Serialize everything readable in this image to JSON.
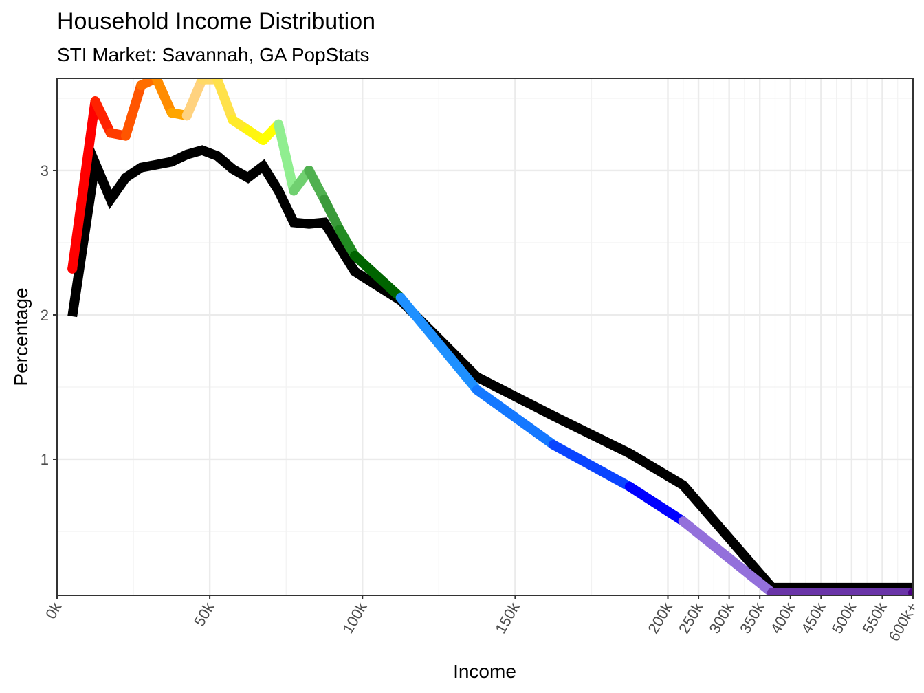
{
  "chart_data": {
    "type": "line",
    "title": "Household Income Distribution",
    "subtitle": "STI Market: Savannah, GA PopStats",
    "xlabel": "Income",
    "ylabel": "Percentage",
    "ylim": [
      0.057,
      3.638
    ],
    "xlim": [
      0,
      600
    ],
    "x_scale": "linear to 200k, compressed above 200k",
    "grid": true,
    "x_ticks": [
      {
        "value": 0,
        "label": "0k"
      },
      {
        "value": 50,
        "label": "50k"
      },
      {
        "value": 100,
        "label": "100k"
      },
      {
        "value": 150,
        "label": "150k"
      },
      {
        "value": 200,
        "label": "200k"
      },
      {
        "value": 250,
        "label": "250k"
      },
      {
        "value": 300,
        "label": "300k"
      },
      {
        "value": 350,
        "label": "350k"
      },
      {
        "value": 400,
        "label": "400k"
      },
      {
        "value": 450,
        "label": "450k"
      },
      {
        "value": 500,
        "label": "500k"
      },
      {
        "value": 550,
        "label": "550k"
      },
      {
        "value": 600,
        "label": "600k+"
      }
    ],
    "y_ticks": [
      {
        "value": 1,
        "label": "1"
      },
      {
        "value": 2,
        "label": "2"
      },
      {
        "value": 3,
        "label": "3"
      }
    ],
    "x": [
      5,
      12.5,
      17.5,
      22.5,
      27.5,
      32.5,
      37.5,
      42.5,
      47.5,
      52.5,
      57.5,
      62.5,
      67.5,
      72.5,
      77.5,
      82.5,
      87.5,
      92.5,
      97.5,
      112.5,
      137.5,
      162.5,
      187.5,
      225,
      370,
      600
    ],
    "series": [
      {
        "name": "Savannah, GA",
        "color": "#000000",
        "values": [
          1.99,
          3.05,
          2.8,
          2.95,
          3.02,
          3.04,
          3.06,
          3.11,
          3.14,
          3.1,
          3.01,
          2.95,
          3.03,
          2.86,
          2.64,
          2.63,
          2.64,
          2.47,
          2.3,
          2.1,
          1.57,
          1.3,
          1.04,
          0.82,
          0.11,
          0.11
        ]
      },
      {
        "name": "STI Market",
        "colors": [
          "#ff0000",
          "#ff2200",
          "#ff3c00",
          "#ff5500",
          "#ff6e00",
          "#ff8c00",
          "#ffa500",
          "#ffd27f",
          "#ffd966",
          "#ffe14a",
          "#ffea2a",
          "#fff510",
          "#ffff00",
          "#90ee90",
          "#70d070",
          "#50b050",
          "#3a9a3a",
          "#228b22",
          "#006400",
          "#1e90ff",
          "#1478ff",
          "#0a44ff",
          "#0000ff",
          "#9370db",
          "#6a35a8",
          "#4b0082"
        ],
        "values": [
          2.32,
          3.48,
          3.26,
          3.24,
          3.59,
          3.64,
          3.4,
          3.38,
          3.63,
          3.63,
          3.35,
          3.28,
          3.21,
          3.32,
          2.86,
          3.0,
          2.8,
          2.59,
          2.41,
          2.12,
          1.48,
          1.1,
          0.81,
          0.57,
          0.075,
          0.075
        ]
      }
    ]
  }
}
